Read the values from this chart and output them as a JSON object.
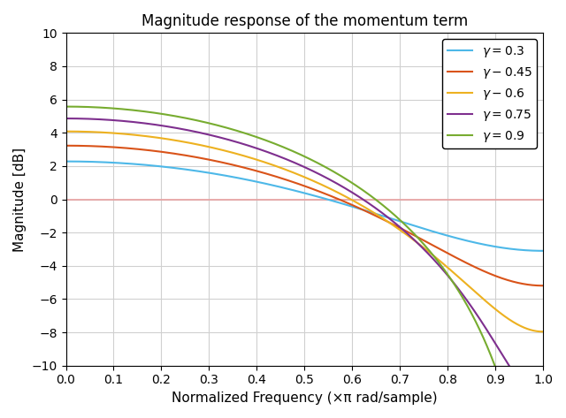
{
  "title": "Magnitude response of the momentum term",
  "xlabel": "Normalized Frequency (×π rad/sample)",
  "ylabel": "Magnitude [dB]",
  "xlim": [
    0,
    1
  ],
  "ylim": [
    -10,
    10
  ],
  "xticks": [
    0,
    0.1,
    0.2,
    0.3,
    0.4,
    0.5,
    0.6,
    0.7,
    0.8,
    0.9,
    1.0
  ],
  "yticks": [
    -10,
    -8,
    -6,
    -4,
    -2,
    0,
    2,
    4,
    6,
    8,
    10
  ],
  "gammas": [
    0.3,
    0.45,
    0.6,
    0.75,
    0.9
  ],
  "colors": [
    "#4db8e8",
    "#d95319",
    "#edb120",
    "#7e2f8e",
    "#77ac30"
  ],
  "hline_color": "#e8a0a0",
  "hline_y": 0,
  "background_color": "#ffffff",
  "grid_color": "#d0d0d0",
  "legend_gamma_labels": [
    "γ = 0.3",
    "γ -0.45",
    "γ - 0.6",
    "γ =0.75",
    "γ = 0.9"
  ]
}
